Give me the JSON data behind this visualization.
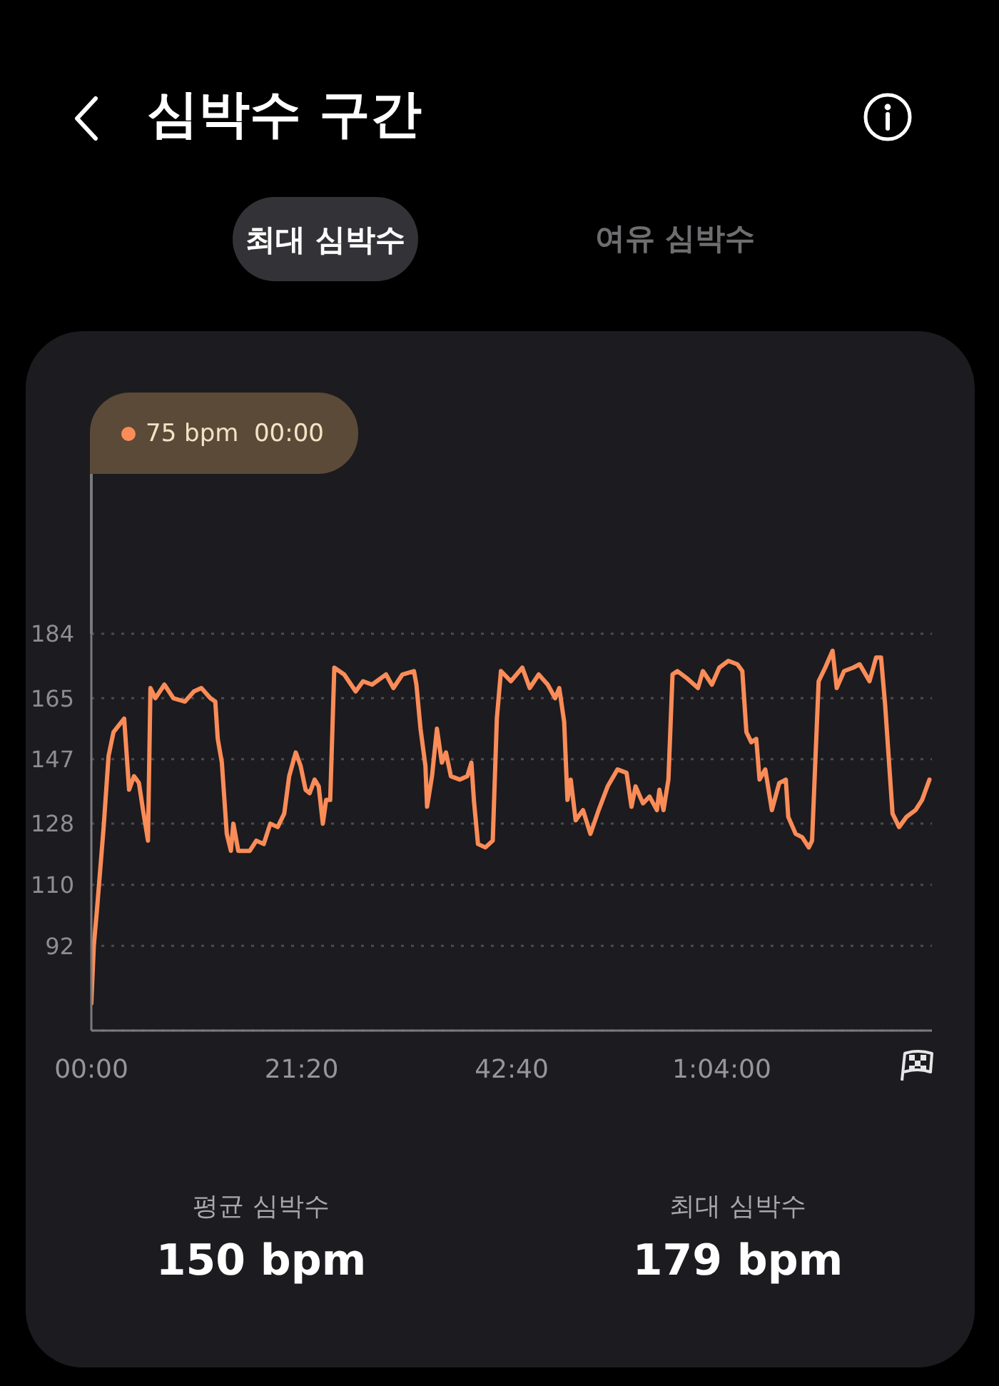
{
  "chart_data": {
    "type": "line",
    "title": "심박수 구간",
    "annotations": [
      "75 bpm  00:00",
      "최대 심박수",
      "여유 심박수",
      "평균 심박수",
      "150 bpm",
      "최대 심박수",
      "179 bpm"
    ],
    "x": [
      0,
      15,
      35,
      75,
      105,
      135,
      200,
      230,
      260,
      290,
      315,
      345,
      360,
      390,
      445,
      500,
      570,
      625,
      670,
      725,
      755,
      770,
      795,
      825,
      850,
      865,
      895,
      965,
      1005,
      1050,
      1090,
      1135,
      1175,
      1205,
      1245,
      1275,
      1305,
      1330,
      1360,
      1385,
      1410,
      1430,
      1455,
      1480,
      1540,
      1610,
      1655,
      1710,
      1795,
      1840,
      1895,
      1965,
      1980,
      2005,
      2035,
      2045,
      2075,
      2105,
      2135,
      2160,
      2190,
      2245,
      2290,
      2315,
      2330,
      2355,
      2400,
      2445,
      2470,
      2495,
      2555,
      2625,
      2670,
      2725,
      2780,
      2825,
      2850,
      2880,
      2900,
      2920,
      2950,
      2995,
      3040,
      3090,
      3145,
      3205,
      3260,
      3290,
      3315,
      3360,
      3400,
      3445,
      3460,
      3485,
      3515,
      3540,
      3570,
      3625,
      3695,
      3725,
      3780,
      3825,
      3880,
      3935,
      3965,
      3990,
      4020,
      4050,
      4070,
      4105,
      4145,
      4190,
      4230,
      4245,
      4290,
      4330,
      4370,
      4390,
      4430,
      4470,
      4515,
      4540,
      4585,
      4640,
      4680,
      4740,
      4780,
      4810,
      4835,
      4880,
      4920,
      4965,
      5020,
      5060,
      5105
    ],
    "series": [
      {
        "color": "#fa8c58",
        "values": [
          75,
          92,
          103,
          127,
          148,
          155,
          159,
          138,
          142,
          140,
          132,
          123,
          168,
          165,
          169,
          165,
          164,
          167,
          168,
          165,
          164,
          153,
          146,
          125,
          120,
          128,
          120,
          120,
          123,
          122,
          128,
          127,
          131,
          142,
          149,
          145,
          138,
          137,
          141,
          139,
          128,
          135,
          135,
          174,
          172,
          167,
          170,
          169,
          172,
          168,
          172,
          173,
          169,
          156,
          145,
          133,
          142,
          156,
          146,
          149,
          142,
          141,
          142,
          146,
          135,
          122,
          121,
          123,
          159,
          173,
          170,
          174,
          168,
          172,
          169,
          165,
          168,
          158,
          135,
          141,
          129,
          132,
          125,
          132,
          139,
          144,
          143,
          133,
          139,
          134,
          136,
          132,
          138,
          132,
          141,
          172,
          173,
          171,
          168,
          173,
          169,
          174,
          176,
          175,
          173,
          155,
          152,
          153,
          141,
          144,
          132,
          140,
          141,
          130,
          125,
          124,
          121,
          123,
          170,
          174,
          179,
          168,
          173,
          174,
          175,
          170,
          177,
          177,
          163,
          131,
          127,
          130,
          132,
          135,
          141
        ]
      }
    ],
    "xlim": [
      0,
      5120
    ],
    "xticks": [
      {
        "value": 0,
        "label": "00:00"
      },
      {
        "value": 1280,
        "label": "21:20"
      },
      {
        "value": 2560,
        "label": "42:40"
      },
      {
        "value": 3840,
        "label": "1:04:00"
      }
    ],
    "ylim": [
      67,
      184
    ],
    "yticks": [
      92,
      110,
      128,
      147,
      165,
      184
    ],
    "grid": "y"
  }
}
